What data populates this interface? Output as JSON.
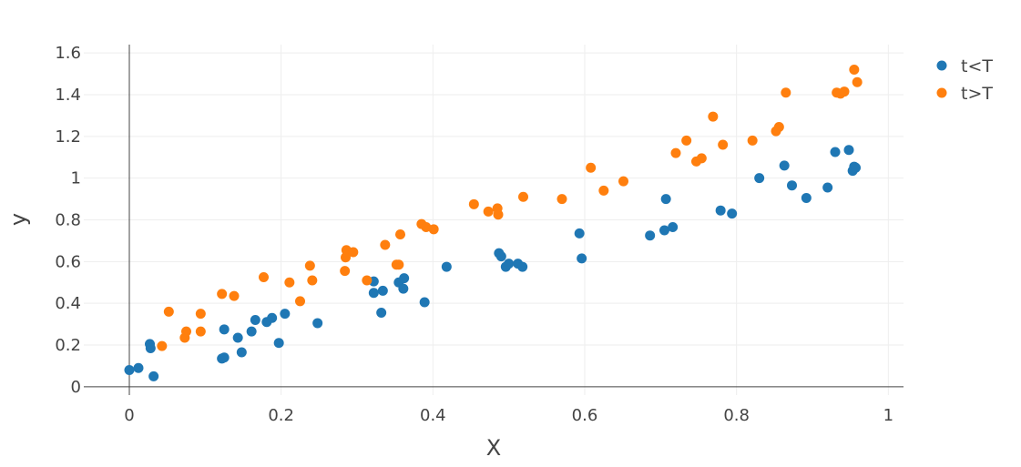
{
  "chart_data": {
    "type": "scatter",
    "title": "",
    "xlabel": "X",
    "ylabel": "y",
    "xlim": [
      -0.06,
      1.02
    ],
    "ylim": [
      -0.04,
      1.64
    ],
    "x_ticks": [
      0,
      0.2,
      0.4,
      0.6,
      0.8,
      1
    ],
    "x_tick_labels": [
      "0",
      "0.2",
      "0.4",
      "0.6",
      "0.8",
      "1"
    ],
    "y_ticks": [
      0,
      0.2,
      0.4,
      0.6,
      0.8,
      1,
      1.2,
      1.4,
      1.6
    ],
    "y_tick_labels": [
      "0",
      "0.2",
      "0.4",
      "0.6",
      "0.8",
      "1",
      "1.2",
      "1.4",
      "1.6"
    ],
    "grid": true,
    "legend_position": "top-right",
    "series": [
      {
        "name": "t<T",
        "color": "#1f77b4",
        "points": [
          [
            0.0,
            0.08
          ],
          [
            0.012,
            0.09
          ],
          [
            0.027,
            0.205
          ],
          [
            0.028,
            0.185
          ],
          [
            0.032,
            0.05
          ],
          [
            0.122,
            0.135
          ],
          [
            0.125,
            0.14
          ],
          [
            0.125,
            0.275
          ],
          [
            0.143,
            0.235
          ],
          [
            0.148,
            0.165
          ],
          [
            0.161,
            0.265
          ],
          [
            0.166,
            0.32
          ],
          [
            0.181,
            0.31
          ],
          [
            0.188,
            0.33
          ],
          [
            0.197,
            0.21
          ],
          [
            0.205,
            0.35
          ],
          [
            0.248,
            0.305
          ],
          [
            0.322,
            0.505
          ],
          [
            0.322,
            0.45
          ],
          [
            0.332,
            0.355
          ],
          [
            0.334,
            0.46
          ],
          [
            0.355,
            0.5
          ],
          [
            0.361,
            0.47
          ],
          [
            0.362,
            0.52
          ],
          [
            0.389,
            0.405
          ],
          [
            0.418,
            0.575
          ],
          [
            0.487,
            0.64
          ],
          [
            0.49,
            0.625
          ],
          [
            0.496,
            0.575
          ],
          [
            0.5,
            0.59
          ],
          [
            0.512,
            0.59
          ],
          [
            0.518,
            0.575
          ],
          [
            0.593,
            0.735
          ],
          [
            0.596,
            0.615
          ],
          [
            0.686,
            0.725
          ],
          [
            0.705,
            0.75
          ],
          [
            0.707,
            0.9
          ],
          [
            0.716,
            0.765
          ],
          [
            0.779,
            0.845
          ],
          [
            0.794,
            0.83
          ],
          [
            0.83,
            1.0
          ],
          [
            0.863,
            1.06
          ],
          [
            0.873,
            0.965
          ],
          [
            0.892,
            0.905
          ],
          [
            0.92,
            0.955
          ],
          [
            0.93,
            1.125
          ],
          [
            0.948,
            1.135
          ],
          [
            0.953,
            1.035
          ],
          [
            0.955,
            1.055
          ],
          [
            0.957,
            1.05
          ]
        ]
      },
      {
        "name": "t>T",
        "color": "#ff7f0e",
        "points": [
          [
            0.043,
            0.195
          ],
          [
            0.052,
            0.36
          ],
          [
            0.073,
            0.235
          ],
          [
            0.075,
            0.265
          ],
          [
            0.094,
            0.265
          ],
          [
            0.094,
            0.35
          ],
          [
            0.122,
            0.445
          ],
          [
            0.138,
            0.435
          ],
          [
            0.177,
            0.525
          ],
          [
            0.211,
            0.5
          ],
          [
            0.225,
            0.41
          ],
          [
            0.238,
            0.58
          ],
          [
            0.241,
            0.51
          ],
          [
            0.284,
            0.555
          ],
          [
            0.285,
            0.62
          ],
          [
            0.286,
            0.655
          ],
          [
            0.295,
            0.645
          ],
          [
            0.313,
            0.51
          ],
          [
            0.337,
            0.68
          ],
          [
            0.352,
            0.585
          ],
          [
            0.355,
            0.585
          ],
          [
            0.357,
            0.73
          ],
          [
            0.385,
            0.78
          ],
          [
            0.391,
            0.765
          ],
          [
            0.401,
            0.755
          ],
          [
            0.454,
            0.875
          ],
          [
            0.473,
            0.84
          ],
          [
            0.485,
            0.855
          ],
          [
            0.486,
            0.825
          ],
          [
            0.519,
            0.91
          ],
          [
            0.57,
            0.9
          ],
          [
            0.608,
            1.05
          ],
          [
            0.625,
            0.94
          ],
          [
            0.651,
            0.985
          ],
          [
            0.72,
            1.12
          ],
          [
            0.734,
            1.18
          ],
          [
            0.747,
            1.08
          ],
          [
            0.754,
            1.095
          ],
          [
            0.769,
            1.295
          ],
          [
            0.782,
            1.16
          ],
          [
            0.821,
            1.18
          ],
          [
            0.852,
            1.225
          ],
          [
            0.856,
            1.245
          ],
          [
            0.865,
            1.41
          ],
          [
            0.932,
            1.41
          ],
          [
            0.937,
            1.405
          ],
          [
            0.942,
            1.415
          ],
          [
            0.955,
            1.52
          ],
          [
            0.959,
            1.46
          ]
        ]
      }
    ]
  }
}
